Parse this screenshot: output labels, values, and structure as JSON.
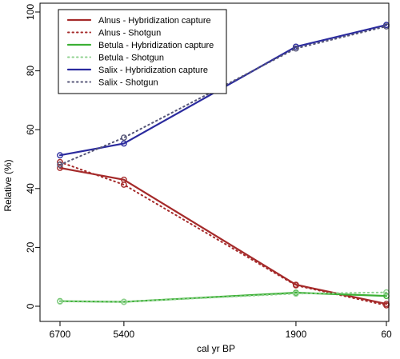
{
  "chart_data": {
    "type": "line",
    "xlabel": "cal yr BP",
    "ylabel": "Relative (%)",
    "x_categories": [
      "6700",
      "5400",
      "1900",
      "60"
    ],
    "x_values": [
      6700,
      5400,
      1900,
      60
    ],
    "x_range": [
      6800,
      -40
    ],
    "ylim": [
      0,
      100
    ],
    "yticks": [
      0,
      20,
      40,
      60,
      80,
      100
    ],
    "grid": false,
    "legend_position": "top-left",
    "series": [
      {
        "name": "Alnus - Hybridization capture",
        "method": "capture",
        "color": "#a52a2a",
        "style": "solid",
        "values": [
          47,
          43,
          7.3,
          0.8
        ]
      },
      {
        "name": "Alnus - Shotgun",
        "method": "shotgun",
        "color": "#a52a2a",
        "style": "dotted",
        "values": [
          49,
          41.3,
          7.1,
          0.3
        ]
      },
      {
        "name": "Betula - Hybridization capture",
        "method": "capture",
        "color": "#3cb035",
        "style": "solid",
        "values": [
          1.7,
          1.5,
          4.6,
          3.5
        ]
      },
      {
        "name": "Betula - Shotgun",
        "method": "shotgun",
        "color": "#8fd18f",
        "style": "dotted",
        "values": [
          1.6,
          1.5,
          4.3,
          4.7
        ]
      },
      {
        "name": "Salix - Hybridization capture",
        "method": "capture",
        "color": "#2b2b9e",
        "style": "solid",
        "values": [
          51.3,
          55.3,
          88.2,
          95.6
        ]
      },
      {
        "name": "Salix - Shotgun",
        "method": "shotgun",
        "color": "#555577",
        "style": "dotted",
        "values": [
          48.1,
          57.3,
          87.6,
          95.1
        ]
      }
    ]
  }
}
